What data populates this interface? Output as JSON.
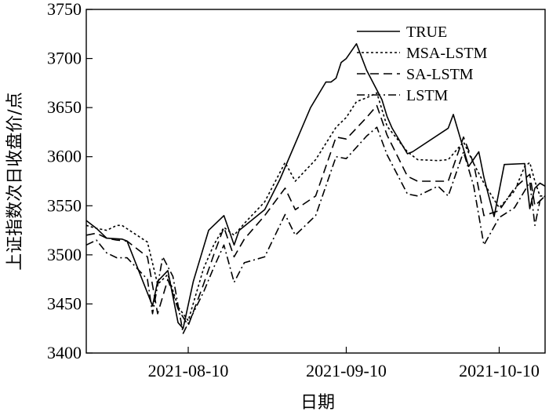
{
  "chart_data": {
    "type": "line",
    "title": "",
    "xlabel": "日期",
    "ylabel": "上证指数次日收盘价/点",
    "ylim": [
      3400,
      3750
    ],
    "yticks": [
      3400,
      3450,
      3500,
      3550,
      3600,
      3650,
      3700,
      3750
    ],
    "x_type": "date",
    "xlim": [
      "2021-07-21",
      "2021-10-19"
    ],
    "xticks": [
      "2021-08-10",
      "2021-09-10",
      "2021-10-10"
    ],
    "legend_position": "top-right",
    "grid": false,
    "series": [
      {
        "name": "TRUE",
        "dash": "solid",
        "x": [
          "2021-07-21",
          "2021-07-23",
          "2021-07-25",
          "2021-07-28",
          "2021-07-29",
          "2021-08-03",
          "2021-08-04",
          "2021-08-06",
          "2021-08-08",
          "2021-08-09",
          "2021-08-11",
          "2021-08-14",
          "2021-08-17",
          "2021-08-19",
          "2021-08-20",
          "2021-08-25",
          "2021-08-28",
          "2021-09-03",
          "2021-09-06",
          "2021-09-07",
          "2021-09-08",
          "2021-09-09",
          "2021-09-10",
          "2021-09-12",
          "2021-09-14",
          "2021-09-17",
          "2021-09-18",
          "2021-09-19",
          "2021-09-22",
          "2021-09-23",
          "2021-09-30",
          "2021-10-01",
          "2021-10-04",
          "2021-10-06",
          "2021-10-07",
          "2021-10-09",
          "2021-10-11",
          "2021-10-15",
          "2021-10-16",
          "2021-10-17",
          "2021-10-18",
          "2021-10-19"
        ],
        "values": [
          3535,
          3527,
          3517,
          3516,
          3514,
          3448,
          3473,
          3484,
          3431,
          3425,
          3473,
          3525,
          3540,
          3510,
          3525,
          3546,
          3577,
          3650,
          3676,
          3676,
          3680,
          3696,
          3700,
          3715,
          3688,
          3658,
          3641,
          3629,
          3603,
          3605,
          3629,
          3643,
          3590,
          3605,
          3579,
          3539,
          3592,
          3593,
          3547,
          3568,
          3573,
          3570
        ]
      },
      {
        "name": "MSA-LSTM",
        "dash": "3,3",
        "x": [
          "2021-07-21",
          "2021-07-23",
          "2021-07-25",
          "2021-07-27",
          "2021-07-28",
          "2021-08-02",
          "2021-08-04",
          "2021-08-06",
          "2021-08-08",
          "2021-08-10",
          "2021-08-13",
          "2021-08-15",
          "2021-08-17",
          "2021-08-19",
          "2021-08-21",
          "2021-08-25",
          "2021-08-29",
          "2021-08-31",
          "2021-09-04",
          "2021-09-08",
          "2021-09-10",
          "2021-09-12",
          "2021-09-14",
          "2021-09-16",
          "2021-09-18",
          "2021-09-22",
          "2021-09-24",
          "2021-09-28",
          "2021-09-30",
          "2021-10-03",
          "2021-10-05",
          "2021-10-07",
          "2021-10-10",
          "2021-10-13",
          "2021-10-15",
          "2021-10-16",
          "2021-10-17",
          "2021-10-18",
          "2021-10-19"
        ],
        "values": [
          3530,
          3527,
          3525,
          3530,
          3530,
          3513,
          3470,
          3480,
          3447,
          3433,
          3486,
          3510,
          3528,
          3520,
          3532,
          3554,
          3594,
          3575,
          3597,
          3630,
          3640,
          3656,
          3660,
          3665,
          3631,
          3605,
          3597,
          3596,
          3597,
          3615,
          3593,
          3573,
          3548,
          3565,
          3590,
          3594,
          3575,
          3560,
          3560
        ]
      },
      {
        "name": "SA-LSTM",
        "dash": "11,6",
        "x": [
          "2021-07-21",
          "2021-07-23",
          "2021-07-25",
          "2021-07-27",
          "2021-07-29",
          "2021-08-02",
          "2021-08-04",
          "2021-08-06",
          "2021-08-08",
          "2021-08-10",
          "2021-08-13",
          "2021-08-15",
          "2021-08-17",
          "2021-08-19",
          "2021-08-21",
          "2021-08-25",
          "2021-08-29",
          "2021-08-31",
          "2021-09-04",
          "2021-09-08",
          "2021-09-10",
          "2021-09-14",
          "2021-09-16",
          "2021-09-18",
          "2021-09-22",
          "2021-09-24",
          "2021-09-28",
          "2021-09-30",
          "2021-10-03",
          "2021-10-05",
          "2021-10-07",
          "2021-10-10",
          "2021-10-13",
          "2021-10-16",
          "2021-10-17",
          "2021-10-18",
          "2021-10-19"
        ],
        "values": [
          3520,
          3522,
          3517,
          3515,
          3514,
          3498,
          3440,
          3475,
          3445,
          3428,
          3470,
          3500,
          3528,
          3498,
          3516,
          3540,
          3568,
          3546,
          3560,
          3620,
          3618,
          3640,
          3652,
          3622,
          3580,
          3575,
          3575,
          3575,
          3620,
          3593,
          3540,
          3545,
          3568,
          3582,
          3550,
          3555,
          3560
        ]
      },
      {
        "name": "LSTM",
        "dash": "10,4,2,4",
        "x": [
          "2021-07-21",
          "2021-07-23",
          "2021-07-25",
          "2021-07-27",
          "2021-07-29",
          "2021-08-02",
          "2021-08-03",
          "2021-08-05",
          "2021-08-07",
          "2021-08-09",
          "2021-08-13",
          "2021-08-15",
          "2021-08-17",
          "2021-08-19",
          "2021-08-21",
          "2021-08-25",
          "2021-08-29",
          "2021-08-31",
          "2021-09-04",
          "2021-09-08",
          "2021-09-10",
          "2021-09-14",
          "2021-09-16",
          "2021-09-18",
          "2021-09-22",
          "2021-09-24",
          "2021-09-28",
          "2021-09-30",
          "2021-10-03",
          "2021-10-05",
          "2021-10-07",
          "2021-10-10",
          "2021-10-13",
          "2021-10-16",
          "2021-10-17",
          "2021-10-18",
          "2021-10-19"
        ],
        "values": [
          3510,
          3515,
          3502,
          3497,
          3497,
          3475,
          3440,
          3498,
          3478,
          3420,
          3462,
          3487,
          3510,
          3472,
          3492,
          3498,
          3541,
          3520,
          3540,
          3600,
          3598,
          3621,
          3630,
          3602,
          3562,
          3560,
          3570,
          3560,
          3605,
          3570,
          3510,
          3538,
          3548,
          3574,
          3530,
          3555,
          3560
        ]
      }
    ]
  }
}
